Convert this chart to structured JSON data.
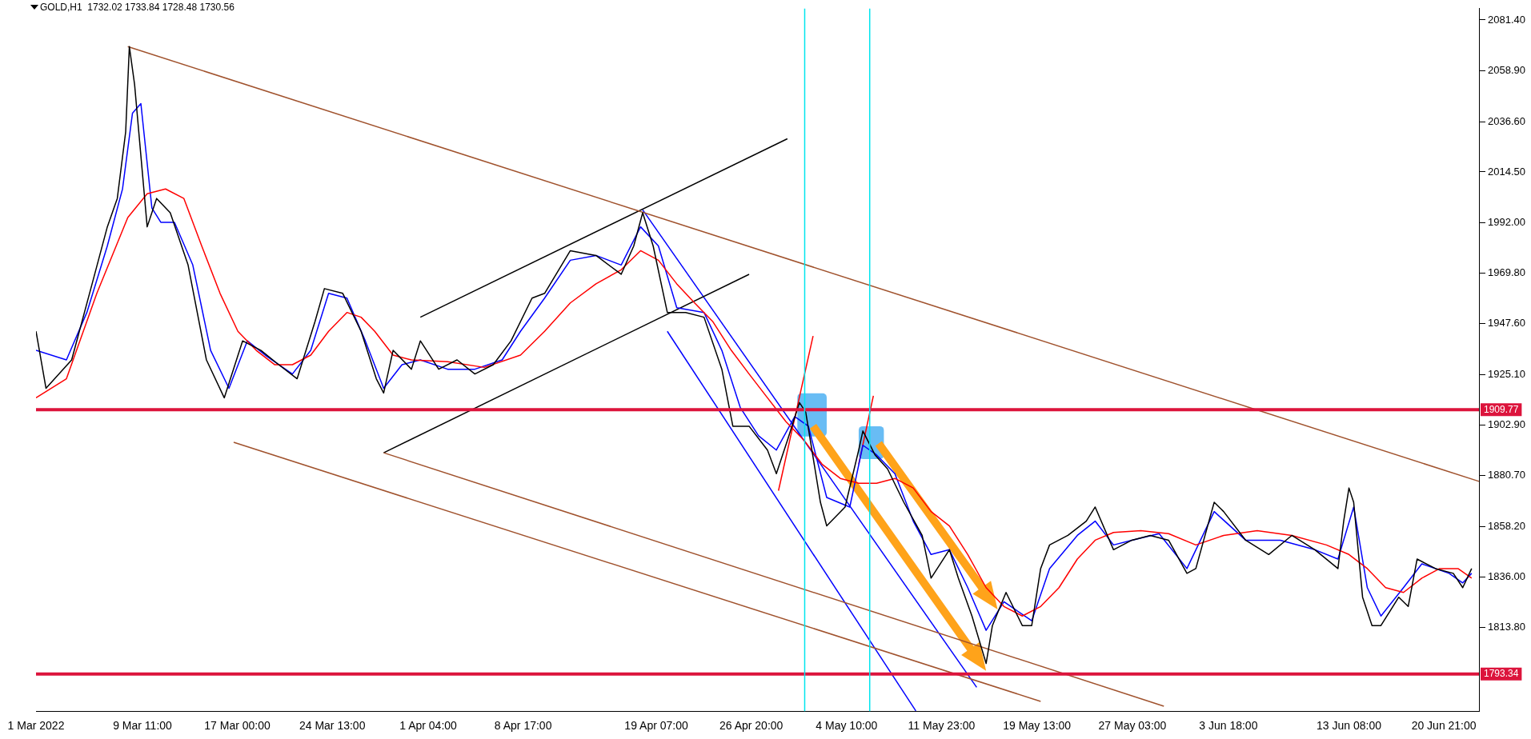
{
  "chart_data": {
    "type": "line",
    "title": "GOLD,H1  1732.02 1733.84 1728.48 1730.56",
    "xlim": [
      "2022-03-01T00:00",
      "2022-06-23T16:00"
    ],
    "ylim": [
      1777,
      2086.4
    ],
    "xticks": [
      {
        "value": "2022-03-01T00:00",
        "label": "1 Mar 2022"
      },
      {
        "value": "2022-03-09T11:00",
        "label": "9 Mar 11:00"
      },
      {
        "value": "2022-03-17T00:00",
        "label": "17 Mar 00:00"
      },
      {
        "value": "2022-03-24T13:00",
        "label": "24 Mar 13:00"
      },
      {
        "value": "2022-04-01T04:00",
        "label": "1 Apr 04:00"
      },
      {
        "value": "2022-04-08T17:00",
        "label": "8 Apr 17:00"
      },
      {
        "value": "2022-04-19T07:00",
        "label": "19 Apr 07:00"
      },
      {
        "value": "2022-04-26T20:00",
        "label": "26 Apr 20:00"
      },
      {
        "value": "2022-05-04T10:00",
        "label": "4 May 10:00"
      },
      {
        "value": "2022-05-11T23:00",
        "label": "11 May 23:00"
      },
      {
        "value": "2022-05-19T13:00",
        "label": "19 May 13:00"
      },
      {
        "value": "2022-05-27T03:00",
        "label": "27 May 03:00"
      },
      {
        "value": "2022-06-03T18:00",
        "label": "3 Jun 18:00"
      },
      {
        "value": "2022-06-13T08:00",
        "label": "13 Jun 08:00"
      },
      {
        "value": "2022-06-20T21:00",
        "label": "20 Jun 21:00"
      }
    ],
    "yticks": [
      {
        "value": 1813.8,
        "label": "1813.80"
      },
      {
        "value": 1836,
        "label": "1836.00"
      },
      {
        "value": 1858.2,
        "label": "1858.20"
      },
      {
        "value": 1880.7,
        "label": "1880.70"
      },
      {
        "value": 1902.9,
        "label": "1902.90"
      },
      {
        "value": 1925.1,
        "label": "1925.10"
      },
      {
        "value": 1947.6,
        "label": "1947.60"
      },
      {
        "value": 1969.8,
        "label": "1969.80"
      },
      {
        "value": 1992,
        "label": "1992.00"
      },
      {
        "value": 2014.5,
        "label": "2014.50"
      },
      {
        "value": 2036.6,
        "label": "2036.60"
      },
      {
        "value": 2058.9,
        "label": "2058.90"
      },
      {
        "value": 2081.4,
        "label": "2081.40"
      }
    ],
    "grid": false,
    "legend": false,
    "marker": "none",
    "series": [
      {
        "color": "#000000",
        "x": [
          "2022-03-01T00:00",
          "2022-03-01T19:00",
          "2022-03-03T20:00",
          "2022-03-05T11:00",
          "2022-03-06T16:00",
          "2022-03-07T11:00",
          "2022-03-08T03:00",
          "2022-03-08T10:00",
          "2022-03-08T20:00",
          "2022-03-09T20:00",
          "2022-03-10T14:00",
          "2022-03-11T16:00",
          "2022-03-13T02:00",
          "2022-03-14T13:00",
          "2022-03-15T23:00",
          "2022-03-17T10:00",
          "2022-03-18T21:00",
          "2022-03-20T07:00",
          "2022-03-21T18:00",
          "2022-03-23T04:00",
          "2022-03-23T22:00",
          "2022-03-25T09:00",
          "2022-03-26T20:00",
          "2022-03-28T01:00",
          "2022-03-28T15:00",
          "2022-03-29T09:00",
          "2022-03-30T20:00",
          "2022-03-31T13:00",
          "2022-04-02T00:00",
          "2022-04-03T11:00",
          "2022-04-04T21:00",
          "2022-04-06T08:00",
          "2022-04-07T18:00",
          "2022-04-09T10:00",
          "2022-04-10T10:00",
          "2022-04-12T11:00",
          "2022-04-14T12:00",
          "2022-04-16T12:00",
          "2022-04-17T12:00",
          "2022-04-18T05:00",
          "2022-04-19T01:00",
          "2022-04-20T04:00",
          "2022-04-21T15:00",
          "2022-04-23T02:00",
          "2022-04-24T12:00",
          "2022-04-25T09:00",
          "2022-04-26T16:00",
          "2022-04-28T03:00",
          "2022-04-28T20:00",
          "2022-04-29T17:00",
          "2022-04-30T16:00",
          "2022-05-01T04:00",
          "2022-05-02T08:00",
          "2022-05-02T20:00",
          "2022-05-04T07:00",
          "2022-05-05T09:00",
          "2022-05-05T17:00",
          "2022-05-06T16:00",
          "2022-05-07T16:00",
          "2022-05-08T23:00",
          "2022-05-10T10:00",
          "2022-05-11T03:00",
          "2022-05-12T14:00",
          "2022-05-13T07:00",
          "2022-05-14T09:00",
          "2022-05-15T12:00",
          "2022-05-16T00:00",
          "2022-05-17T02:00",
          "2022-05-18T09:00",
          "2022-05-19T03:00",
          "2022-05-19T20:00",
          "2022-05-20T13:00",
          "2022-05-22T00:00",
          "2022-05-23T11:00",
          "2022-05-24T04:00",
          "2022-05-25T15:00",
          "2022-05-27T02:00",
          "2022-05-28T13:00",
          "2022-05-30T00:00",
          "2022-05-31T11:00",
          "2022-06-01T04:00",
          "2022-06-02T15:00",
          "2022-06-03T09:00",
          "2022-06-05T03:00",
          "2022-06-06T23:00",
          "2022-06-08T19:00",
          "2022-06-10T15:00",
          "2022-06-12T11:00",
          "2022-06-12T22:00",
          "2022-06-13T08:00",
          "2022-06-13T17:00",
          "2022-06-14T10:00",
          "2022-06-15T04:00",
          "2022-06-15T21:00",
          "2022-06-17T07:00",
          "2022-06-18T01:00",
          "2022-06-18T18:00",
          "2022-06-20T05:00",
          "2022-06-21T15:00",
          "2022-06-22T09:00",
          "2022-06-23T02:00"
        ],
        "values": [
          1944.3,
          1919.2,
          1931.7,
          1965.2,
          1990.3,
          2002.8,
          2032.1,
          2069.7,
          2053.0,
          1990.3,
          2002.8,
          1996.5,
          1973.5,
          1931.7,
          1915.0,
          1940.1,
          1935.9,
          1929.6,
          1923.4,
          1948.5,
          1963.1,
          1961.0,
          1944.3,
          1923.4,
          1917.1,
          1935.9,
          1927.6,
          1940.1,
          1927.6,
          1931.7,
          1925.5,
          1929.6,
          1940.1,
          1958.9,
          1961.0,
          1979.8,
          1977.7,
          1969.4,
          1981.9,
          1996.5,
          1981.9,
          1952.6,
          1952.6,
          1950.5,
          1927.6,
          1902.5,
          1902.5,
          1892.0,
          1881.6,
          1896.2,
          1912.9,
          1908.7,
          1869.0,
          1858.6,
          1866.9,
          1892.0,
          1900.4,
          1889.9,
          1883.7,
          1869.0,
          1854.4,
          1835.6,
          1848.1,
          1835.6,
          1818.9,
          1798.0,
          1814.7,
          1829.3,
          1814.7,
          1814.7,
          1839.8,
          1850.2,
          1854.4,
          1860.7,
          1866.9,
          1848.1,
          1852.3,
          1854.4,
          1852.3,
          1837.7,
          1839.8,
          1869.0,
          1864.9,
          1852.3,
          1846.0,
          1854.4,
          1848.1,
          1839.8,
          1860.7,
          1875.3,
          1869.0,
          1827.2,
          1814.7,
          1814.7,
          1827.2,
          1823.1,
          1844.0,
          1839.8,
          1837.7,
          1831.4,
          1839.8
        ]
      },
      {
        "color": "#ff0000",
        "x": [
          "2022-03-01T00:00",
          "2022-03-03T10:00",
          "2022-03-05T20:00",
          "2022-03-08T07:00",
          "2022-03-09T20:00",
          "2022-03-11T07:00",
          "2022-03-12T18:00",
          "2022-03-14T04:00",
          "2022-03-15T15:00",
          "2022-03-17T01:00",
          "2022-03-18T12:00",
          "2022-03-19T23:00",
          "2022-03-21T09:00",
          "2022-03-22T20:00",
          "2022-03-24T06:00",
          "2022-03-25T17:00",
          "2022-03-26T20:00",
          "2022-03-27T22:00",
          "2022-03-29T09:00",
          "2022-03-30T20:00",
          "2022-04-02T17:00",
          "2022-04-05T15:00",
          "2022-04-08T12:00",
          "2022-04-10T10:00",
          "2022-04-12T11:00",
          "2022-04-14T12:00",
          "2022-04-16T12:00",
          "2022-04-18T01:00",
          "2022-04-19T11:00",
          "2022-04-20T22:00",
          "2022-04-22T08:00",
          "2022-04-23T19:00",
          "2022-04-25T06:00",
          "2022-04-26T16:00",
          "2022-04-28T03:00",
          "2022-04-29T14:00",
          "2022-05-01T01:00",
          "2022-05-02T11:00",
          "2022-05-03T22:00",
          "2022-05-05T09:00",
          "2022-05-06T19:00",
          "2022-05-08T06:00",
          "2022-05-09T17:00",
          "2022-05-11T03:00",
          "2022-05-12T14:00",
          "2022-05-14T01:00",
          "2022-05-15T12:00",
          "2022-05-16T22:00",
          "2022-05-18T09:00",
          "2022-05-19T20:00",
          "2022-05-21T07:00",
          "2022-05-22T18:00",
          "2022-05-24T04:00",
          "2022-05-25T15:00",
          "2022-05-27T19:00",
          "2022-05-30T00:00",
          "2022-06-01T04:00",
          "2022-06-03T09:00",
          "2022-06-06T01:00",
          "2022-06-08T19:00",
          "2022-06-11T13:00",
          "2022-06-13T08:00",
          "2022-06-14T19:00",
          "2022-06-16T06:00",
          "2022-06-17T16:00",
          "2022-06-19T03:00",
          "2022-06-20T13:00",
          "2022-06-22T00:00",
          "2022-06-23T02:00"
        ],
        "values": [
          1915.0,
          1923.4,
          1961.0,
          1994.4,
          2004.9,
          2007.0,
          2002.8,
          1981.9,
          1961.0,
          1944.3,
          1935.9,
          1929.6,
          1929.6,
          1933.8,
          1944.3,
          1952.6,
          1950.5,
          1944.3,
          1933.8,
          1931.7,
          1930.9,
          1928.4,
          1933.8,
          1944.3,
          1956.8,
          1965.2,
          1971.4,
          1979.8,
          1975.6,
          1965.2,
          1956.8,
          1948.5,
          1935.9,
          1925.5,
          1915.0,
          1904.6,
          1896.2,
          1885.8,
          1879.5,
          1877.4,
          1877.4,
          1879.5,
          1875.3,
          1864.9,
          1858.6,
          1846.0,
          1831.4,
          1823.1,
          1818.9,
          1823.1,
          1831.4,
          1844.0,
          1852.3,
          1855.7,
          1856.5,
          1855.2,
          1850.2,
          1854.4,
          1856.5,
          1854.4,
          1850.2,
          1846.0,
          1839.8,
          1831.4,
          1829.3,
          1835.6,
          1839.8,
          1839.8,
          1835.6
        ]
      },
      {
        "color": "#0000ff",
        "x": [
          "2022-03-01T00:00",
          "2022-03-03T10:00",
          "2022-03-05T01:00",
          "2022-03-06T16:00",
          "2022-03-07T21:00",
          "2022-03-08T16:00",
          "2022-03-09T08:00",
          "2022-03-10T05:00",
          "2022-03-10T22:00",
          "2022-03-12T00:00",
          "2022-03-13T11:00",
          "2022-03-14T21:00",
          "2022-03-16T08:00",
          "2022-03-17T19:00",
          "2022-03-19T05:00",
          "2022-03-21T09:00",
          "2022-03-22T20:00",
          "2022-03-24T06:00",
          "2022-03-25T17:00",
          "2022-03-27T04:00",
          "2022-03-28T15:00",
          "2022-03-30T02:00",
          "2022-03-31T13:00",
          "2022-04-02T17:00",
          "2022-04-04T21:00",
          "2022-04-07T01:00",
          "2022-04-08T12:00",
          "2022-04-10T10:00",
          "2022-04-12T11:00",
          "2022-04-14T12:00",
          "2022-04-16T12:00",
          "2022-04-18T01:00",
          "2022-04-19T11:00",
          "2022-04-20T22:00",
          "2022-04-23T02:00",
          "2022-04-24T12:00",
          "2022-04-25T23:00",
          "2022-04-27T10:00",
          "2022-04-28T20:00",
          "2022-04-30T07:00",
          "2022-05-01T09:00",
          "2022-05-02T20:00",
          "2022-05-04T16:00",
          "2022-05-05T17:00",
          "2022-05-06T19:00",
          "2022-05-08T06:00",
          "2022-05-09T17:00",
          "2022-05-11T03:00",
          "2022-05-12T14:00",
          "2022-05-14T01:00",
          "2022-05-15T12:00",
          "2022-05-16T22:00",
          "2022-05-19T03:00",
          "2022-05-20T13:00",
          "2022-05-22T18:00",
          "2022-05-24T04:00",
          "2022-05-25T15:00",
          "2022-05-27T02:00",
          "2022-05-29T06:00",
          "2022-05-31T11:00",
          "2022-06-02T15:00",
          "2022-06-05T03:00",
          "2022-06-07T21:00",
          "2022-06-10T15:00",
          "2022-06-12T11:00",
          "2022-06-13T17:00",
          "2022-06-14T19:00",
          "2022-06-15T21:00",
          "2022-06-17T16:00",
          "2022-06-19T03:00",
          "2022-06-21T07:00",
          "2022-06-22T09:00",
          "2022-06-23T02:00"
        ],
        "values": [
          1935.9,
          1931.7,
          1952.6,
          1981.9,
          2007.0,
          2040.4,
          2044.6,
          1998.6,
          1992.3,
          1992.3,
          1973.5,
          1935.9,
          1919.2,
          1940.1,
          1933.8,
          1925.5,
          1935.9,
          1961.0,
          1958.9,
          1940.1,
          1919.2,
          1929.6,
          1931.7,
          1927.6,
          1927.6,
          1931.7,
          1944.3,
          1958.9,
          1975.6,
          1977.7,
          1973.5,
          1990.3,
          1981.9,
          1954.7,
          1952.6,
          1935.9,
          1910.8,
          1898.3,
          1892.0,
          1906.7,
          1902.5,
          1871.1,
          1866.9,
          1894.1,
          1889.9,
          1881.6,
          1860.7,
          1846.0,
          1848.1,
          1831.4,
          1812.6,
          1825.2,
          1816.8,
          1839.8,
          1854.4,
          1860.7,
          1850.2,
          1852.3,
          1855.2,
          1839.8,
          1864.9,
          1852.3,
          1852.3,
          1848.1,
          1844.0,
          1866.9,
          1831.4,
          1818.9,
          1831.4,
          1841.9,
          1837.7,
          1833.5,
          1837.7
        ]
      },
      {
        "color": "#a0522d",
        "x": [
          "2022-03-08T07:00",
          "2022-06-23T16:00"
        ],
        "values": [
          2069.7,
          1878.2
        ]
      },
      {
        "color": "#a0522d",
        "x": [
          "2022-03-16T17:00",
          "2022-05-19T20:00"
        ],
        "values": [
          1895.4,
          1781.3
        ]
      },
      {
        "color": "#a0522d",
        "x": [
          "2022-03-28T15:00",
          "2022-05-29T15:00"
        ],
        "values": [
          1890.8,
          1779.2
        ]
      },
      {
        "color": "#000000",
        "x": [
          "2022-03-31T13:00",
          "2022-04-29T17:00"
        ],
        "values": [
          1950.5,
          2029.1
        ]
      },
      {
        "color": "#000000",
        "x": [
          "2022-03-28T15:00",
          "2022-04-26T16:00"
        ],
        "values": [
          1890.8,
          1969.4
        ]
      },
      {
        "color": "#0000ff",
        "x": [
          "2022-04-18T05:00",
          "2022-05-14T18:00"
        ],
        "values": [
          1997.8,
          1787.5
        ]
      },
      {
        "color": "#0000ff",
        "x": [
          "2022-04-20T04:00",
          "2022-05-09T22:00"
        ],
        "values": [
          1944.3,
          1777.1
        ]
      },
      {
        "color": "#ff0000",
        "x": [
          "2022-04-29T00:00",
          "2022-05-01T18:00"
        ],
        "values": [
          1874.1,
          1942.2
        ]
      },
      {
        "color": "#ff0000",
        "x": [
          "2022-05-05T09:00",
          "2022-05-06T13:00"
        ],
        "values": [
          1885.8,
          1915.9
        ]
      }
    ],
    "ref_lines": [
      {
        "axis": "y",
        "value": 1909.77,
        "label": "1909.77",
        "color": "#dc143c"
      },
      {
        "axis": "y",
        "value": 1793.34,
        "label": "1793.34",
        "color": "#dc143c"
      },
      {
        "axis": "x",
        "value": "2022-05-01T02:00",
        "color": "#00e5ee"
      },
      {
        "axis": "x",
        "value": "2022-05-06T06:00",
        "color": "#00e5ee"
      }
    ]
  }
}
